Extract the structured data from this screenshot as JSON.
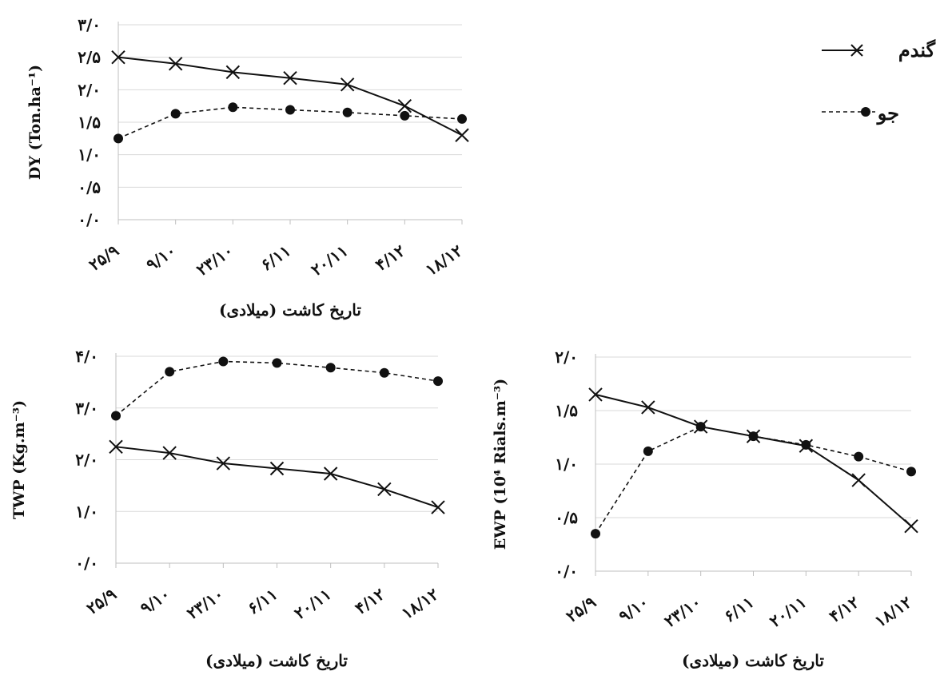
{
  "legend": {
    "items": [
      {
        "label": "گندم",
        "marker": "x-icon",
        "line": "solid"
      },
      {
        "label": "جو",
        "marker": "dot-icon",
        "line": "dashed"
      }
    ]
  },
  "chart_data": [
    {
      "type": "line",
      "panel": "top-left",
      "ylabel": "DY (Ton.ha⁻¹)",
      "xlabel": "تاریخ کاشت (میلادی)",
      "categories": [
        "۲۵/۹",
        "۹/۱۰",
        "۲۳/۱۰",
        "۶/۱۱",
        "۲۰/۱۱",
        "۴/۱۲",
        "۱۸/۱۲"
      ],
      "ylim": [
        0,
        3
      ],
      "yticks": [
        0,
        0.5,
        1.0,
        1.5,
        2.0,
        2.5,
        3.0
      ],
      "ytick_labels": [
        "۰/۰",
        "۰/۵",
        "۱/۰",
        "۱/۵",
        "۲/۰",
        "۲/۵",
        "۳/۰"
      ],
      "grid": true,
      "series": [
        {
          "name": "گندم",
          "marker": "x",
          "line": "solid",
          "values": [
            2.5,
            2.4,
            2.27,
            2.18,
            2.08,
            1.75,
            1.3
          ]
        },
        {
          "name": "جو",
          "marker": "dot",
          "line": "dashed",
          "values": [
            1.25,
            1.63,
            1.73,
            1.69,
            1.65,
            1.6,
            1.55
          ]
        }
      ]
    },
    {
      "type": "line",
      "panel": "bottom-left",
      "ylabel": "TWP (Kg.m⁻³)",
      "xlabel": "تاریخ کاشت (میلادی)",
      "categories": [
        "۲۵/۹",
        "۹/۱۰",
        "۲۳/۱۰",
        "۶/۱۱",
        "۲۰/۱۱",
        "۴/۱۲",
        "۱۸/۱۲"
      ],
      "ylim": [
        0,
        4
      ],
      "yticks": [
        0,
        1.0,
        2.0,
        3.0,
        4.0
      ],
      "ytick_labels": [
        "۰/۰",
        "۱/۰",
        "۲/۰",
        "۳/۰",
        "۴/۰"
      ],
      "grid": true,
      "series": [
        {
          "name": "گندم",
          "marker": "x",
          "line": "solid",
          "values": [
            2.25,
            2.13,
            1.93,
            1.83,
            1.73,
            1.43,
            1.08
          ]
        },
        {
          "name": "جو",
          "marker": "dot",
          "line": "dashed",
          "values": [
            2.85,
            3.7,
            3.9,
            3.87,
            3.78,
            3.68,
            3.52
          ]
        }
      ]
    },
    {
      "type": "line",
      "panel": "bottom-right",
      "ylabel": "EWP (10⁴ Rials.m⁻³)",
      "xlabel": "تاریخ کاشت (میلادی)",
      "categories": [
        "۲۵/۹",
        "۹/۱۰",
        "۲۳/۱۰",
        "۶/۱۱",
        "۲۰/۱۱",
        "۴/۱۲",
        "۱۸/۱۲"
      ],
      "ylim": [
        0,
        2
      ],
      "yticks": [
        0,
        0.5,
        1.0,
        1.5,
        2.0
      ],
      "ytick_labels": [
        "۰/۰",
        "۰/۵",
        "۱/۰",
        "۱/۵",
        "۲/۰"
      ],
      "grid": true,
      "series": [
        {
          "name": "گندم",
          "marker": "x",
          "line": "solid",
          "values": [
            1.65,
            1.53,
            1.35,
            1.26,
            1.17,
            0.85,
            0.42
          ]
        },
        {
          "name": "جو",
          "marker": "dot",
          "line": "dashed",
          "values": [
            0.35,
            1.12,
            1.35,
            1.26,
            1.18,
            1.07,
            0.93
          ]
        }
      ]
    }
  ]
}
